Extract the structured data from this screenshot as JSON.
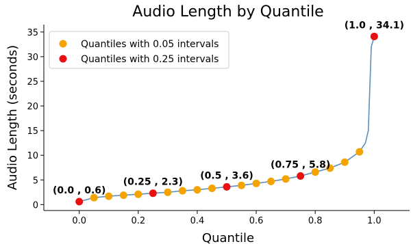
{
  "chart_data": {
    "type": "scatter",
    "title": "Audio Length by Quantile",
    "xlabel": "Quantile",
    "ylabel": "Audio Length (seconds)",
    "xlim": [
      -0.12,
      1.12
    ],
    "ylim": [
      -1.2,
      36.5
    ],
    "xticks": [
      0.0,
      0.2,
      0.4,
      0.6,
      0.8,
      1.0
    ],
    "xtick_labels": [
      "0.0",
      "0.2",
      "0.4",
      "0.6",
      "0.8",
      "1.0"
    ],
    "yticks": [
      0,
      5,
      10,
      15,
      20,
      25,
      30,
      35
    ],
    "ytick_labels": [
      "0",
      "5",
      "10",
      "15",
      "20",
      "25",
      "30",
      "35"
    ],
    "grid": false,
    "legend_position": "top-left",
    "line": {
      "color": "#5b8fba",
      "x": [
        0.0,
        0.05,
        0.1,
        0.15,
        0.2,
        0.25,
        0.3,
        0.35,
        0.4,
        0.45,
        0.5,
        0.55,
        0.6,
        0.65,
        0.7,
        0.75,
        0.8,
        0.85,
        0.9,
        0.95,
        0.97,
        0.98,
        0.99,
        1.0
      ],
      "y": [
        0.6,
        1.4,
        1.7,
        1.9,
        2.1,
        2.3,
        2.5,
        2.8,
        3.0,
        3.3,
        3.6,
        3.9,
        4.3,
        4.7,
        5.2,
        5.8,
        6.6,
        7.4,
        8.6,
        10.7,
        12.5,
        15.0,
        32.0,
        34.1
      ]
    },
    "series": [
      {
        "name": "Quantiles with 0.05 intervals",
        "color": "#f5a300",
        "x": [
          0.05,
          0.1,
          0.15,
          0.2,
          0.3,
          0.35,
          0.4,
          0.45,
          0.55,
          0.6,
          0.65,
          0.7,
          0.8,
          0.85,
          0.9,
          0.95
        ],
        "y": [
          1.4,
          1.7,
          1.9,
          2.1,
          2.5,
          2.8,
          3.0,
          3.3,
          3.9,
          4.3,
          4.7,
          5.2,
          6.6,
          7.4,
          8.6,
          10.7
        ]
      },
      {
        "name": "Quantiles with 0.25 intervals",
        "color": "#e81010",
        "x": [
          0.0,
          0.25,
          0.5,
          0.75,
          1.0
        ],
        "y": [
          0.6,
          2.3,
          3.6,
          5.8,
          34.1
        ]
      }
    ],
    "annotations": [
      {
        "text": "(0.0 , 0.6)",
        "x": 0.0,
        "y": 0.6
      },
      {
        "text": "(0.25 , 2.3)",
        "x": 0.25,
        "y": 2.3
      },
      {
        "text": "(0.5 , 3.6)",
        "x": 0.5,
        "y": 3.6
      },
      {
        "text": "(0.75 , 5.8)",
        "x": 0.75,
        "y": 5.8
      },
      {
        "text": "(1.0 , 34.1)",
        "x": 1.0,
        "y": 34.1
      }
    ]
  }
}
